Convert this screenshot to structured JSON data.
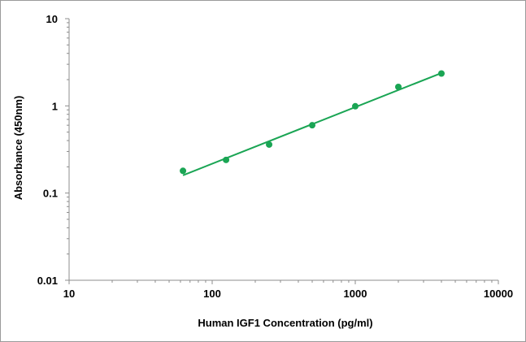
{
  "chart_data": {
    "type": "scatter",
    "title": "",
    "xlabel": "Human IGF1 Concentration (pg/ml)",
    "ylabel": "Absorbance (450nm)",
    "xscale": "log",
    "yscale": "log",
    "xlim": [
      10,
      10000
    ],
    "ylim": [
      0.01,
      10
    ],
    "xticks": [
      10,
      100,
      1000,
      10000
    ],
    "xtick_labels": [
      "10",
      "100",
      "1000",
      "10000"
    ],
    "yticks": [
      0.01,
      0.1,
      1,
      10
    ],
    "ytick_labels": [
      "0.01",
      "0.1",
      "1",
      "10"
    ],
    "grid": false,
    "legend": "none",
    "color": "#1aa554",
    "series": [
      {
        "x": [
          62.5,
          125,
          250,
          500,
          1000,
          2000,
          4000
        ],
        "y": [
          0.18,
          0.24,
          0.36,
          0.6,
          0.99,
          1.65,
          2.35
        ]
      }
    ],
    "trendline": {
      "type": "power",
      "x": [
        62.5,
        4000
      ],
      "y": [
        0.16,
        2.38
      ]
    }
  }
}
